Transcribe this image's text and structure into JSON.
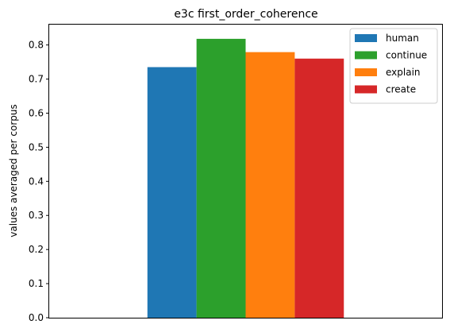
{
  "chart_data": {
    "type": "bar",
    "title": "e3c first_order_coherence",
    "xlabel": "",
    "ylabel": "values averaged per corpus",
    "categories": [
      ""
    ],
    "series": [
      {
        "name": "human",
        "values": [
          0.735
        ],
        "color": "#1f77b4"
      },
      {
        "name": "continue",
        "values": [
          0.818
        ],
        "color": "#2ca02c"
      },
      {
        "name": "explain",
        "values": [
          0.779
        ],
        "color": "#ff7f0e"
      },
      {
        "name": "create",
        "values": [
          0.76
        ],
        "color": "#d62728"
      }
    ],
    "ylim": [
      0,
      0.862
    ],
    "yticks": [
      "0.0",
      "0.1",
      "0.2",
      "0.3",
      "0.4",
      "0.5",
      "0.6",
      "0.7",
      "0.8"
    ],
    "grid": false,
    "legend_position": "top-right"
  }
}
